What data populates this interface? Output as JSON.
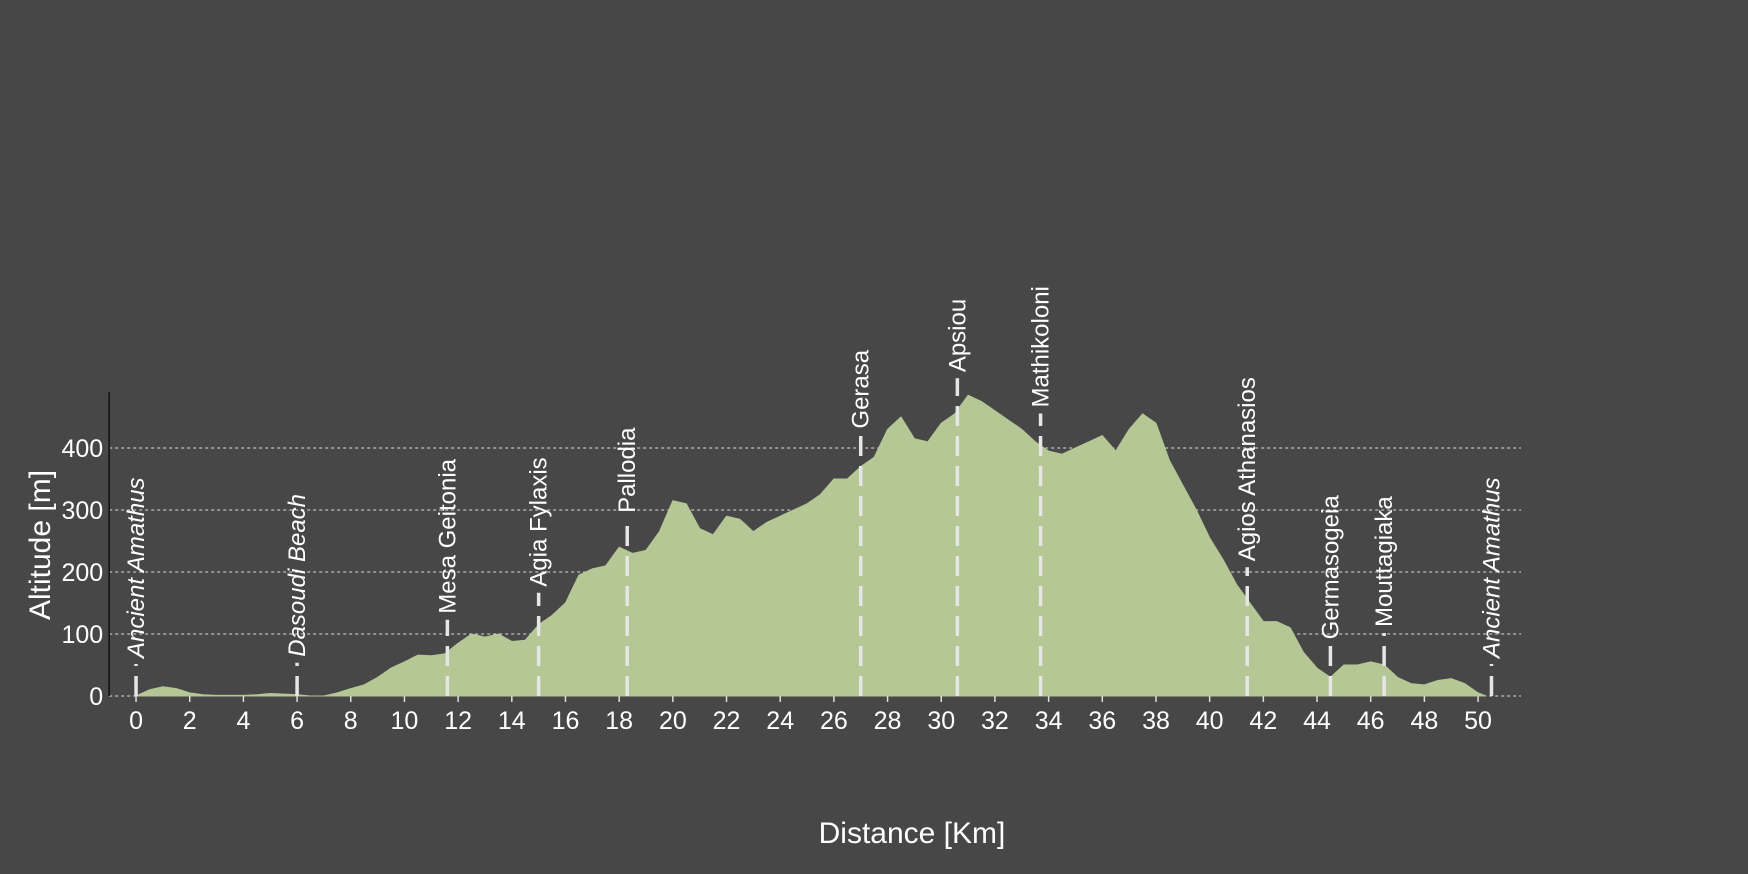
{
  "chart_data": {
    "type": "area",
    "xlabel": "Distance [Km]",
    "ylabel": "Altitude [m]",
    "x": [
      0,
      0.5,
      1,
      1.5,
      2,
      2.5,
      3,
      4,
      4.5,
      5,
      5.5,
      6,
      6.5,
      7,
      7.5,
      8,
      8.5,
      9,
      9.5,
      10,
      10.5,
      11,
      11.5,
      12,
      12.5,
      13,
      13.5,
      14,
      14.5,
      15,
      15.5,
      16,
      16.5,
      17,
      17.5,
      18,
      18.5,
      19,
      19.5,
      20,
      20.5,
      21,
      21.5,
      22,
      22.5,
      23,
      23.5,
      24,
      24.5,
      25,
      25.5,
      26,
      26.5,
      27,
      27.5,
      28,
      28.5,
      29,
      29.5,
      30,
      30.5,
      31,
      31.5,
      32,
      32.5,
      33,
      33.5,
      34,
      34.5,
      35,
      35.5,
      36,
      36.5,
      37,
      37.5,
      38,
      38.5,
      39,
      39.5,
      40,
      40.5,
      41,
      41.5,
      42,
      42.5,
      43,
      43.5,
      44,
      44.5,
      45,
      45.5,
      46,
      46.5,
      47,
      47.5,
      48,
      48.5,
      49,
      49.5,
      50,
      50.3
    ],
    "values": [
      0,
      10,
      15,
      12,
      5,
      2,
      1,
      1,
      2,
      4,
      3,
      2,
      0,
      0,
      5,
      12,
      18,
      30,
      45,
      55,
      66,
      65,
      68,
      85,
      100,
      95,
      100,
      88,
      90,
      115,
      130,
      150,
      195,
      205,
      210,
      240,
      230,
      235,
      265,
      315,
      310,
      270,
      260,
      290,
      285,
      265,
      280,
      290,
      300,
      310,
      325,
      350,
      350,
      370,
      385,
      430,
      450,
      415,
      410,
      440,
      455,
      485,
      475,
      460,
      445,
      430,
      410,
      395,
      390,
      400,
      410,
      420,
      395,
      430,
      455,
      440,
      380,
      340,
      300,
      255,
      220,
      180,
      150,
      120,
      120,
      110,
      70,
      45,
      30,
      50,
      50,
      55,
      50,
      30,
      20,
      18,
      25,
      28,
      20,
      5,
      0
    ],
    "color": "#b5c794",
    "xlim": [
      -1,
      51.6
    ],
    "ylim": [
      0,
      490
    ],
    "xticks": [
      0,
      2,
      4,
      6,
      8,
      10,
      12,
      14,
      16,
      18,
      20,
      22,
      24,
      26,
      28,
      30,
      32,
      34,
      36,
      38,
      40,
      42,
      44,
      46,
      48,
      50
    ],
    "yticks": [
      0,
      100,
      200,
      300,
      400
    ],
    "grid": true,
    "waypoints": [
      {
        "x": 0,
        "label": "Ancient Amathus",
        "italic": true
      },
      {
        "x": 6,
        "label": "Dasoudi Beach",
        "italic": true
      },
      {
        "x": 11.6,
        "label": "Mesa Geitonia"
      },
      {
        "x": 15,
        "label": "Agia Fylaxis"
      },
      {
        "x": 18.3,
        "label": "Pallodia"
      },
      {
        "x": 27,
        "label": "Gerasa"
      },
      {
        "x": 30.6,
        "label": "Apsiou"
      },
      {
        "x": 33.7,
        "label": "Mathikoloni"
      },
      {
        "x": 41.4,
        "label": "Agios Athanasios"
      },
      {
        "x": 44.5,
        "label": "Germasogeia"
      },
      {
        "x": 46.5,
        "label": "Mouttagiaka"
      },
      {
        "x": 50.5,
        "label": "Ancient Amathus",
        "italic": true
      }
    ]
  }
}
